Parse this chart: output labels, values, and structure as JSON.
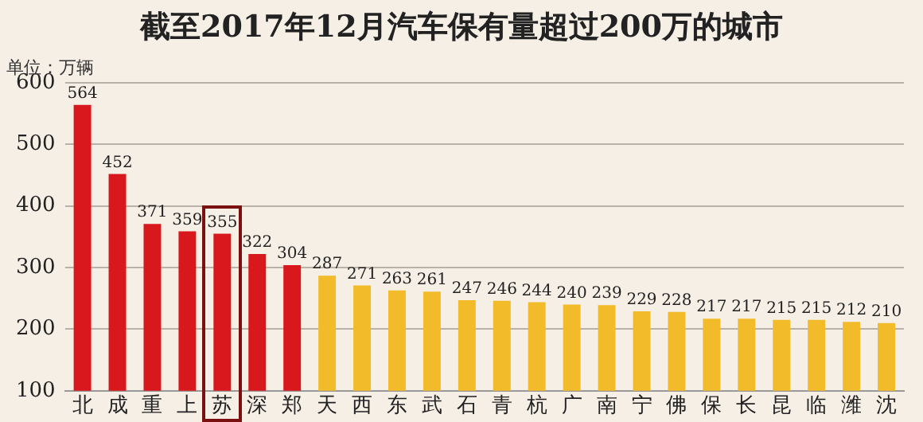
{
  "chart_data": {
    "type": "bar",
    "title": "截至2017年12月汽车保有量超过200万的城市",
    "ylabel": "单位：万辆",
    "categories": [
      "北",
      "成",
      "重",
      "上",
      "苏",
      "深",
      "郑",
      "天",
      "西",
      "东",
      "武",
      "石",
      "青",
      "杭",
      "广",
      "南",
      "宁",
      "佛",
      "保",
      "长",
      "昆",
      "临",
      "潍",
      "沈"
    ],
    "values": [
      564,
      452,
      371,
      359,
      355,
      322,
      304,
      287,
      271,
      263,
      261,
      247,
      246,
      244,
      240,
      239,
      229,
      228,
      217,
      217,
      215,
      215,
      212,
      210
    ],
    "colors": [
      "#d8181c",
      "#d8181c",
      "#d8181c",
      "#d8181c",
      "#d8181c",
      "#d8181c",
      "#d8181c",
      "#f2bb2a",
      "#f2bb2a",
      "#f2bb2a",
      "#f2bb2a",
      "#f2bb2a",
      "#f2bb2a",
      "#f2bb2a",
      "#f2bb2a",
      "#f2bb2a",
      "#f2bb2a",
      "#f2bb2a",
      "#f2bb2a",
      "#f2bb2a",
      "#f2bb2a",
      "#f2bb2a",
      "#f2bb2a",
      "#f2bb2a"
    ],
    "ylim": [
      100,
      600
    ],
    "yticks": [
      100,
      200,
      300,
      400,
      500,
      600
    ],
    "grid": "y",
    "data_labels": true,
    "legend": false
  }
}
